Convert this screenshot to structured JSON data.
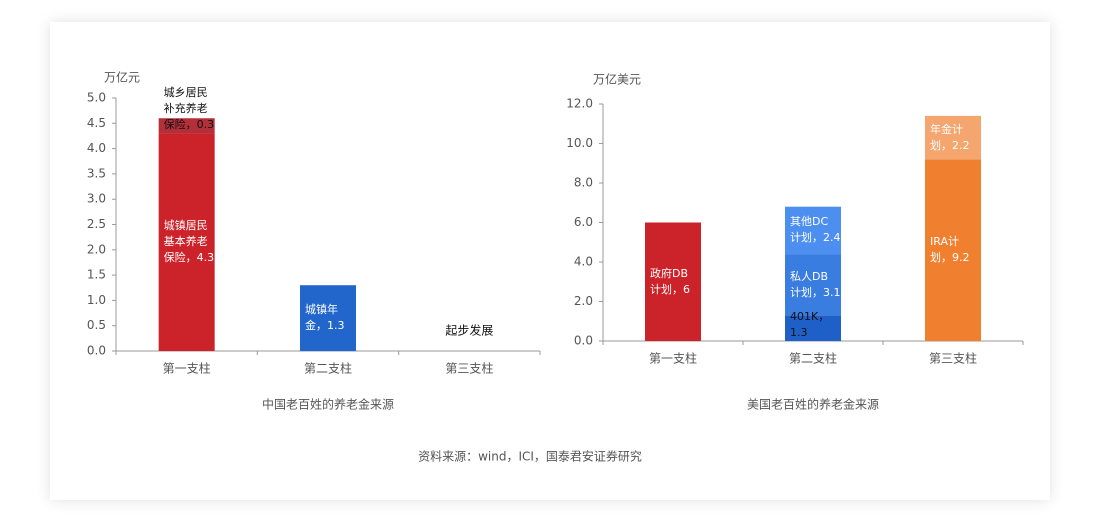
{
  "chart_data": [
    {
      "type": "bar",
      "stacked": true,
      "title": "中国老百姓的养老金来源",
      "y_label": "万亿元",
      "categories": [
        "第一支柱",
        "第二支柱",
        "第三支柱"
      ],
      "series": [
        {
          "color": "#cc2229",
          "values": [
            4.3,
            null,
            null
          ],
          "value_labels": [
            "城镇居民\n基本养老\n保险，4.3",
            null,
            null
          ]
        },
        {
          "color": "#b3303a",
          "values": [
            0.3,
            null,
            null
          ],
          "value_labels": [
            "城乡居民\n补充养老\n保险，0.3",
            null,
            null
          ]
        },
        {
          "color": "#2266cc",
          "values": [
            null,
            1.3,
            null
          ],
          "value_labels": [
            null,
            "城镇年\n金，1.3",
            null
          ]
        }
      ],
      "annotation": "起步发展",
      "ylim": [
        0,
        5
      ],
      "yticks": [
        {
          "value": 0,
          "label": "0.0"
        },
        0.5,
        {
          "value": 1,
          "label": "1.0"
        },
        1.5,
        {
          "value": 2,
          "label": "2.0"
        },
        2.5,
        {
          "value": 3,
          "label": "3.0"
        },
        3.5,
        {
          "value": 4,
          "label": "4.0"
        },
        4.5,
        {
          "value": 5,
          "label": "5.0"
        }
      ]
    },
    {
      "type": "bar",
      "stacked": true,
      "title": "美国老百姓的养老金来源",
      "y_label": "万亿美元",
      "categories": [
        "第一支柱",
        "第二支柱",
        "第三支柱"
      ],
      "series": [
        {
          "color": "#cc2229",
          "values": [
            6,
            null,
            null
          ],
          "value_labels": [
            "政府DB\n计划，6",
            null,
            null
          ]
        },
        {
          "color": "#1f5fc8",
          "values": [
            null,
            1.3,
            null
          ],
          "value_labels": [
            null,
            "401K，\n1.3",
            null
          ]
        },
        {
          "color": "#3a7de0",
          "values": [
            null,
            3.1,
            null
          ],
          "value_labels": [
            null,
            "私人DB\n计划，3.1",
            null
          ]
        },
        {
          "color": "#4d8ff0",
          "values": [
            null,
            2.4,
            null
          ],
          "value_labels": [
            null,
            "其他DC\n计划，2.4",
            null
          ]
        },
        {
          "color": "#f08030",
          "values": [
            null,
            null,
            9.2
          ],
          "value_labels": [
            null,
            null,
            "IRA计\n划，9.2"
          ]
        },
        {
          "color": "#f5a56e",
          "values": [
            null,
            null,
            2.2
          ],
          "value_labels": [
            null,
            null,
            "年金计\n划，2.2"
          ]
        }
      ],
      "ylim": [
        0,
        12
      ],
      "yticks": [
        {
          "value": 0,
          "label": "0.0"
        },
        {
          "value": 2,
          "label": "2.0"
        },
        {
          "value": 4,
          "label": "4.0"
        },
        {
          "value": 6,
          "label": "6.0"
        },
        {
          "value": 8,
          "label": "8.0"
        },
        {
          "value": 10,
          "label": "10.0"
        },
        {
          "value": 12,
          "label": "12.0"
        }
      ]
    }
  ],
  "source": "资料来源：wind，ICI，国泰君安证券研究"
}
